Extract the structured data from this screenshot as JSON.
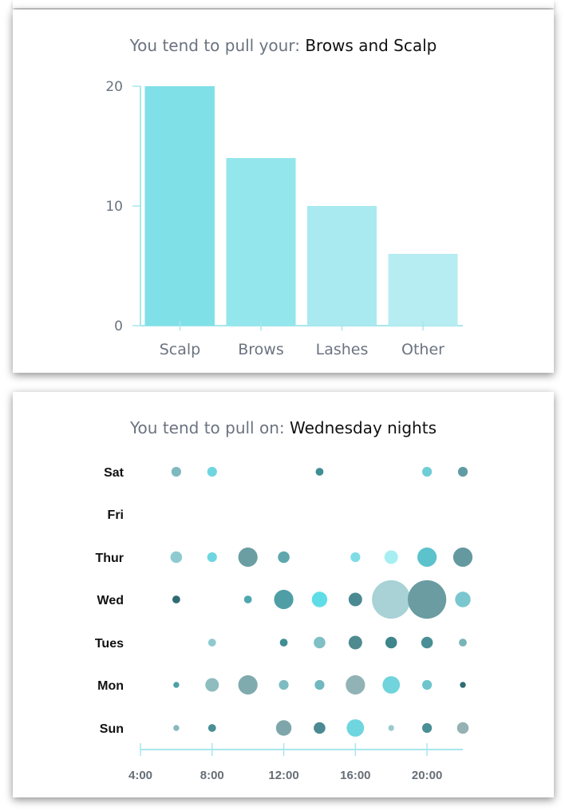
{
  "cards": [
    {
      "title_prefix": "You tend to pull your:",
      "title_value": "Brows and Scalp"
    },
    {
      "title_prefix": "You tend to pull on:",
      "title_value": "Wednesday nights"
    }
  ],
  "chart_data": [
    {
      "type": "bar",
      "title": "You tend to pull your: Brows and Scalp",
      "categories": [
        "Scalp",
        "Brows",
        "Lashes",
        "Other"
      ],
      "values": [
        20,
        14,
        10,
        6
      ],
      "bar_colors": [
        "#7fe0e8",
        "#93e6ec",
        "#a8eaef",
        "#b6edf2"
      ],
      "ylim": [
        0,
        20
      ],
      "yticks": [
        0,
        10,
        20
      ],
      "axis_color": "#a8e6ec",
      "grid": false
    },
    {
      "type": "scatter",
      "subtype": "bubble",
      "title": "You tend to pull on: Wednesday nights",
      "days": [
        "Sun",
        "Mon",
        "Tues",
        "Wed",
        "Thur",
        "Fri",
        "Sat"
      ],
      "xlim": [
        4,
        22
      ],
      "xticks": [
        4,
        8,
        12,
        16,
        20
      ],
      "xtick_labels": [
        "4:00",
        "8:00",
        "12:00",
        "16:00",
        "20:00"
      ],
      "axis_color": "#a8e6ec",
      "points": [
        {
          "day": "Sat",
          "hour": 6,
          "size": 1.5,
          "color": "#7fb9c0"
        },
        {
          "day": "Sat",
          "hour": 8,
          "size": 1.5,
          "color": "#6fd6e0"
        },
        {
          "day": "Sat",
          "hour": 14,
          "size": 1,
          "color": "#3f8e94"
        },
        {
          "day": "Sat",
          "hour": 20,
          "size": 1.5,
          "color": "#6fcdd6"
        },
        {
          "day": "Sat",
          "hour": 22,
          "size": 1.5,
          "color": "#5e9ba2"
        },
        {
          "day": "Thur",
          "hour": 6,
          "size": 2,
          "color": "#8fcad1"
        },
        {
          "day": "Thur",
          "hour": 8,
          "size": 1.5,
          "color": "#6fd6e0"
        },
        {
          "day": "Thur",
          "hour": 10,
          "size": 4,
          "color": "#6a9ea3"
        },
        {
          "day": "Thur",
          "hour": 12,
          "size": 2,
          "color": "#5ea7ad"
        },
        {
          "day": "Thur",
          "hour": 16,
          "size": 1.5,
          "color": "#7fdce6"
        },
        {
          "day": "Thur",
          "hour": 18,
          "size": 2.5,
          "color": "#a7eef2"
        },
        {
          "day": "Thur",
          "hour": 20,
          "size": 4,
          "color": "#5cc2cc"
        },
        {
          "day": "Thur",
          "hour": 22,
          "size": 4,
          "color": "#63999f"
        },
        {
          "day": "Wed",
          "hour": 6,
          "size": 1,
          "color": "#2f6b73"
        },
        {
          "day": "Wed",
          "hour": 10,
          "size": 1,
          "color": "#4ea7b0"
        },
        {
          "day": "Wed",
          "hour": 12,
          "size": 4,
          "color": "#4f9ea6"
        },
        {
          "day": "Wed",
          "hour": 14,
          "size": 3,
          "color": "#5fdde6"
        },
        {
          "day": "Wed",
          "hour": 16,
          "size": 2.5,
          "color": "#4b8a92"
        },
        {
          "day": "Wed",
          "hour": 18,
          "size": 9,
          "color": "#a8d2d5"
        },
        {
          "day": "Wed",
          "hour": 20,
          "size": 9,
          "color": "#6a9ca1"
        },
        {
          "day": "Wed",
          "hour": 22,
          "size": 3,
          "color": "#7ac7cf"
        },
        {
          "day": "Tues",
          "hour": 8,
          "size": 1,
          "color": "#8fc9cf"
        },
        {
          "day": "Tues",
          "hour": 12,
          "size": 1,
          "color": "#3f8e94"
        },
        {
          "day": "Tues",
          "hour": 14,
          "size": 2,
          "color": "#7fbfc5"
        },
        {
          "day": "Tues",
          "hour": 16,
          "size": 2.5,
          "color": "#4e8a90"
        },
        {
          "day": "Tues",
          "hour": 18,
          "size": 2,
          "color": "#3e858c"
        },
        {
          "day": "Tues",
          "hour": 20,
          "size": 2,
          "color": "#4a8f95"
        },
        {
          "day": "Tues",
          "hour": 22,
          "size": 1,
          "color": "#7ab3b8"
        },
        {
          "day": "Mon",
          "hour": 6,
          "size": 0.5,
          "color": "#4ea0a8"
        },
        {
          "day": "Mon",
          "hour": 8,
          "size": 2.5,
          "color": "#8ebcbf"
        },
        {
          "day": "Mon",
          "hour": 10,
          "size": 4,
          "color": "#7faaae"
        },
        {
          "day": "Mon",
          "hour": 12,
          "size": 1.5,
          "color": "#7ebcc2"
        },
        {
          "day": "Mon",
          "hour": 14,
          "size": 1.5,
          "color": "#70b8be"
        },
        {
          "day": "Mon",
          "hour": 16,
          "size": 4,
          "color": "#91b3b6"
        },
        {
          "day": "Mon",
          "hour": 18,
          "size": 3.5,
          "color": "#71d3dc"
        },
        {
          "day": "Mon",
          "hour": 20,
          "size": 1.5,
          "color": "#6fc5cc"
        },
        {
          "day": "Mon",
          "hour": 22,
          "size": 0.5,
          "color": "#2f6b73"
        },
        {
          "day": "Sun",
          "hour": 6,
          "size": 0.5,
          "color": "#8ab8bc"
        },
        {
          "day": "Sun",
          "hour": 8,
          "size": 1,
          "color": "#4a8f95"
        },
        {
          "day": "Sun",
          "hour": 12,
          "size": 3,
          "color": "#7ea6aa"
        },
        {
          "day": "Sun",
          "hour": 14,
          "size": 2,
          "color": "#4b8a92"
        },
        {
          "day": "Sun",
          "hour": 16,
          "size": 3.5,
          "color": "#6fd6e0"
        },
        {
          "day": "Sun",
          "hour": 18,
          "size": 0.5,
          "color": "#9fc9cd"
        },
        {
          "day": "Sun",
          "hour": 20,
          "size": 1.5,
          "color": "#4a8f95"
        },
        {
          "day": "Sun",
          "hour": 22,
          "size": 2,
          "color": "#96b1b3"
        }
      ]
    }
  ]
}
